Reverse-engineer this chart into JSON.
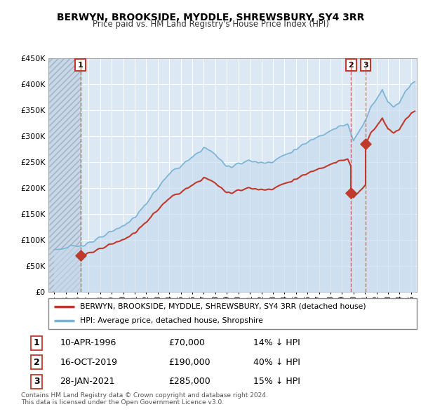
{
  "title": "BERWYN, BROOKSIDE, MYDDLE, SHREWSBURY, SY4 3RR",
  "subtitle": "Price paid vs. HM Land Registry's House Price Index (HPI)",
  "ylim": [
    0,
    450000
  ],
  "yticks": [
    0,
    50000,
    100000,
    150000,
    200000,
    250000,
    300000,
    350000,
    400000,
    450000
  ],
  "ytick_labels": [
    "£0",
    "£50K",
    "£100K",
    "£150K",
    "£200K",
    "£250K",
    "£300K",
    "£350K",
    "£400K",
    "£450K"
  ],
  "xlim_start": 1993.5,
  "xlim_end": 2025.5,
  "hpi_color": "#7ab3d4",
  "price_color": "#c0392b",
  "bg_color": "#dce9f5",
  "hatch_color": "#c0c8d4",
  "grid_color": "#ffffff",
  "vline_color": "#e08080",
  "legend_label_red": "BERWYN, BROOKSIDE, MYDDLE, SHREWSBURY, SY4 3RR (detached house)",
  "legend_label_blue": "HPI: Average price, detached house, Shropshire",
  "sale1_date": "10-APR-1996",
  "sale1_price": "£70,000",
  "sale1_hpi": "14% ↓ HPI",
  "sale1_x": 1996.28,
  "sale1_y": 70000,
  "sale2_date": "16-OCT-2019",
  "sale2_price": "£190,000",
  "sale2_hpi": "40% ↓ HPI",
  "sale2_x": 2019.79,
  "sale2_y": 190000,
  "sale3_date": "28-JAN-2021",
  "sale3_price": "£285,000",
  "sale3_hpi": "15% ↓ HPI",
  "sale3_x": 2021.07,
  "sale3_y": 285000,
  "footnote1": "Contains HM Land Registry data © Crown copyright and database right 2024.",
  "footnote2": "This data is licensed under the Open Government Licence v3.0."
}
